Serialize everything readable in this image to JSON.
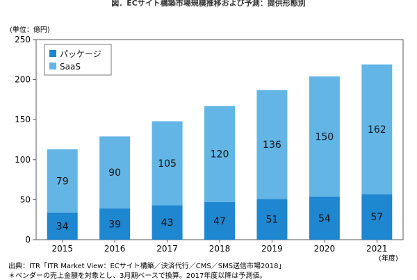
{
  "title": "図．ECサイト構築市場規模推移および予測：提供形態別",
  "unit_label": "(単位：億円)",
  "x_unit_label": "(年度)",
  "source": "出典：ITR「ITR Market View：ECサイト構築／決済代行／CMS／SMS送信市場2018」",
  "note": "＊ベンダーの売上金額を対象とし、3月期ベースで換算。2017年度以降は予測値。",
  "chart_data": {
    "type": "bar",
    "stacked": true,
    "categories": [
      "2015",
      "2016",
      "2017",
      "2018",
      "2019",
      "2020",
      "2021"
    ],
    "series": [
      {
        "name": "パッケージ",
        "color": "#1f86d0",
        "values": [
          34,
          39,
          43,
          47,
          51,
          54,
          57
        ]
      },
      {
        "name": "SaaS",
        "color": "#62b5e5",
        "values": [
          79,
          90,
          105,
          120,
          136,
          150,
          162
        ]
      }
    ],
    "ylim": [
      0,
      250
    ],
    "yticks": [
      0,
      50,
      100,
      150,
      200,
      250
    ],
    "grid": false,
    "legend_position": "top-left"
  }
}
